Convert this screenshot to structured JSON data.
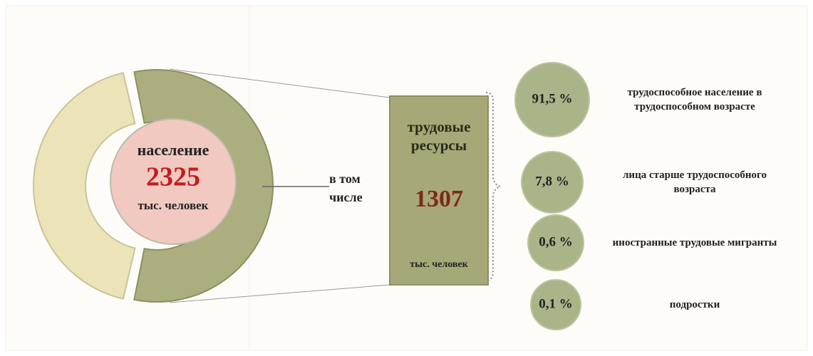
{
  "population": {
    "label": "население",
    "value": 2325,
    "unit": "тыс. человек"
  },
  "connector": {
    "label": "в том числе"
  },
  "labor": {
    "label": "трудовые ресурсы",
    "value": 1307,
    "unit": "тыс. человек"
  },
  "shares": [
    {
      "percent": "91,5 %",
      "label": "трудоспособное население в трудоспособном возрасте"
    },
    {
      "percent": "7,8 %",
      "label": "лица старше трудоспособного возраста"
    },
    {
      "percent": "0,6 %",
      "label": "иностранные трудовые мигранты"
    },
    {
      "percent": "0,1 %",
      "label": "подростки"
    }
  ]
}
